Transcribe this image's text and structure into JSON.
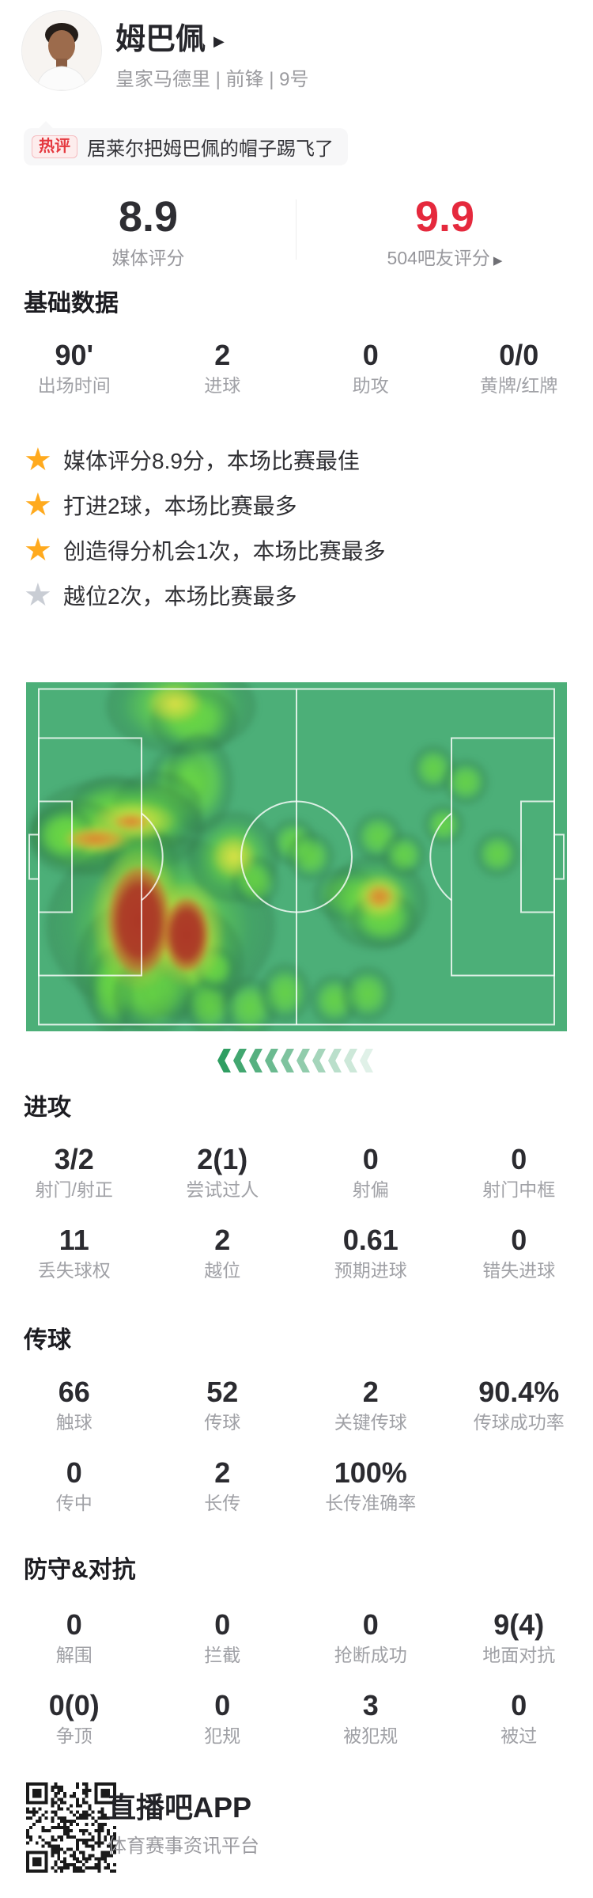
{
  "icons": {
    "star": "★",
    "dropdown": "▶"
  },
  "header": {
    "name": "姆巴佩",
    "team_line": "皇家马德里 | 前锋 | 9号"
  },
  "hot": {
    "badge": "热评",
    "text": "居莱尔把姆巴佩的帽子踢飞了"
  },
  "ratings": {
    "media_value": "8.9",
    "media_label": "媒体评分",
    "fans_value": "9.9",
    "fans_label": "504吧友评分"
  },
  "basic": {
    "title": "基础数据",
    "items": [
      {
        "v": "90'",
        "l": "出场时间"
      },
      {
        "v": "2",
        "l": "进球"
      },
      {
        "v": "0",
        "l": "助攻"
      },
      {
        "v": "0/0",
        "l": "黄牌/红牌"
      }
    ]
  },
  "highlights": [
    {
      "star": "gold",
      "text": "媒体评分8.9分，本场比赛最佳"
    },
    {
      "star": "gold",
      "text": "打进2球，本场比赛最多"
    },
    {
      "star": "gold",
      "text": "创造得分机会1次，本场比赛最多"
    },
    {
      "star": "gray",
      "text": "越位2次，本场比赛最多"
    }
  ],
  "attack": {
    "title": "进攻",
    "rows": [
      [
        {
          "v": "3/2",
          "l": "射门/射正"
        },
        {
          "v": "2(1)",
          "l": "尝试过人"
        },
        {
          "v": "0",
          "l": "射偏"
        },
        {
          "v": "0",
          "l": "射门中框"
        }
      ],
      [
        {
          "v": "11",
          "l": "丢失球权"
        },
        {
          "v": "2",
          "l": "越位"
        },
        {
          "v": "0.61",
          "l": "预期进球"
        },
        {
          "v": "0",
          "l": "错失进球"
        }
      ]
    ]
  },
  "passing": {
    "title": "传球",
    "rows": [
      [
        {
          "v": "66",
          "l": "触球"
        },
        {
          "v": "52",
          "l": "传球"
        },
        {
          "v": "2",
          "l": "关键传球"
        },
        {
          "v": "90.4%",
          "l": "传球成功率"
        }
      ],
      [
        {
          "v": "0",
          "l": "传中"
        },
        {
          "v": "2",
          "l": "长传"
        },
        {
          "v": "100%",
          "l": "长传准确率"
        }
      ]
    ]
  },
  "defense": {
    "title": "防守&对抗",
    "rows": [
      [
        {
          "v": "0",
          "l": "解围"
        },
        {
          "v": "0",
          "l": "拦截"
        },
        {
          "v": "0",
          "l": "抢断成功"
        },
        {
          "v": "9(4)",
          "l": "地面对抗"
        }
      ],
      [
        {
          "v": "0(0)",
          "l": "争顶"
        },
        {
          "v": "0",
          "l": "犯规"
        },
        {
          "v": "3",
          "l": "被犯规"
        },
        {
          "v": "0",
          "l": "被过"
        }
      ]
    ]
  },
  "footer": {
    "app_name": "直播吧APP",
    "tagline": "体育赛事资讯平台"
  },
  "colors": {
    "accent_red": "#E5293D",
    "star_gold": "#FFAA1E",
    "star_gray": "#C9CDD4",
    "pitch_green": "#4CAF78",
    "chevron_green": "#2F9E62"
  },
  "chevrons": {
    "count": 10,
    "color": "#2F9E62"
  },
  "heatmap": {
    "pitch_color": "#4CAF78",
    "blobs": [
      [
        196,
        30,
        190,
        120,
        "g"
      ],
      [
        212,
        48,
        110,
        85,
        "g"
      ],
      [
        192,
        122,
        75,
        80,
        "g"
      ],
      [
        219,
        127,
        85,
        125,
        "g"
      ],
      [
        110,
        160,
        110,
        85,
        "g"
      ],
      [
        165,
        162,
        115,
        100,
        "g"
      ],
      [
        115,
        183,
        220,
        125,
        "g"
      ],
      [
        65,
        196,
        125,
        95,
        "g"
      ],
      [
        46,
        192,
        80,
        75,
        "g"
      ],
      [
        146,
        240,
        95,
        125,
        "g"
      ],
      [
        170,
        308,
        290,
        230,
        "g"
      ],
      [
        128,
        360,
        130,
        160,
        "g"
      ],
      [
        205,
        355,
        140,
        150,
        "g"
      ],
      [
        108,
        390,
        60,
        110,
        "g"
      ],
      [
        160,
        395,
        100,
        100,
        "g"
      ],
      [
        232,
        410,
        65,
        70,
        "g"
      ],
      [
        240,
        362,
        52,
        56,
        "g"
      ],
      [
        283,
        410,
        70,
        75,
        "g"
      ],
      [
        327,
        392,
        65,
        75,
        "g"
      ],
      [
        390,
        402,
        62,
        66,
        "g"
      ],
      [
        432,
        394,
        66,
        70,
        "g"
      ],
      [
        262,
        220,
        115,
        115,
        "g"
      ],
      [
        290,
        252,
        60,
        64,
        "g"
      ],
      [
        338,
        202,
        60,
        60,
        "g"
      ],
      [
        360,
        220,
        60,
        62,
        "g"
      ],
      [
        405,
        268,
        85,
        68,
        "g"
      ],
      [
        443,
        278,
        130,
        120,
        "g"
      ],
      [
        452,
        300,
        85,
        70,
        "g"
      ],
      [
        515,
        109,
        56,
        60,
        "g"
      ],
      [
        556,
        126,
        58,
        58,
        "g"
      ],
      [
        528,
        180,
        52,
        52,
        "g"
      ],
      [
        445,
        195,
        62,
        62,
        "g"
      ],
      [
        478,
        218,
        56,
        56,
        "g"
      ],
      [
        596,
        217,
        58,
        58,
        "g"
      ],
      [
        188,
        27,
        70,
        50,
        "y"
      ],
      [
        135,
        175,
        105,
        50,
        "y"
      ],
      [
        90,
        198,
        88,
        38,
        "y"
      ],
      [
        141,
        300,
        115,
        175,
        "y"
      ],
      [
        202,
        318,
        95,
        130,
        "y"
      ],
      [
        262,
        220,
        55,
        55,
        "y"
      ],
      [
        447,
        272,
        62,
        56,
        "y"
      ],
      [
        133,
        176,
        44,
        20,
        "o"
      ],
      [
        88,
        198,
        70,
        24,
        "o"
      ],
      [
        447,
        271,
        34,
        30,
        "o"
      ],
      [
        143,
        301,
        78,
        135,
        "r"
      ],
      [
        203,
        319,
        56,
        92,
        "r"
      ]
    ]
  }
}
